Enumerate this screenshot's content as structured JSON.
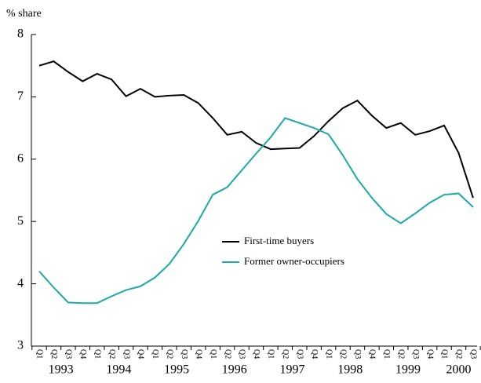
{
  "chart_data": {
    "type": "line",
    "y_axis_label": "% share",
    "categories": [
      "Q1",
      "Q2",
      "Q3",
      "Q4",
      "Q1",
      "Q2",
      "Q3",
      "Q4",
      "Q1",
      "Q2",
      "Q3",
      "Q4",
      "Q1",
      "Q2",
      "Q3",
      "Q4",
      "Q1",
      "Q2",
      "Q3",
      "Q4",
      "Q1",
      "Q2",
      "Q3",
      "Q4",
      "Q1",
      "Q2",
      "Q3",
      "Q4",
      "Q1",
      "Q2",
      "Q3"
    ],
    "years": [
      "1993",
      "1994",
      "1995",
      "1996",
      "1997",
      "1998",
      "1999",
      "2000"
    ],
    "series": [
      {
        "name": "First-time buyers",
        "color": "#000000",
        "values": [
          7.5,
          7.57,
          7.4,
          7.25,
          7.37,
          7.28,
          7.01,
          7.13,
          7.0,
          7.02,
          7.03,
          6.9,
          6.66,
          6.39,
          6.44,
          6.26,
          6.16,
          6.17,
          6.18,
          6.37,
          6.61,
          6.82,
          6.94,
          6.7,
          6.5,
          6.58,
          6.39,
          6.45,
          6.54,
          6.1,
          5.38
        ]
      },
      {
        "name": "Former owner-occupiers",
        "color": "#1aaaa8",
        "values": [
          4.2,
          3.94,
          3.7,
          3.69,
          3.69,
          3.8,
          3.9,
          3.96,
          4.1,
          4.32,
          4.64,
          5.01,
          5.43,
          5.55,
          5.82,
          6.09,
          6.35,
          6.66,
          6.58,
          6.5,
          6.4,
          6.06,
          5.68,
          5.38,
          5.12,
          4.97,
          5.13,
          5.3,
          5.43,
          5.45,
          5.23
        ]
      }
    ],
    "ylim": [
      3,
      8
    ],
    "yticks": [
      3,
      4,
      5,
      6,
      7,
      8
    ],
    "legend": "center-right"
  }
}
